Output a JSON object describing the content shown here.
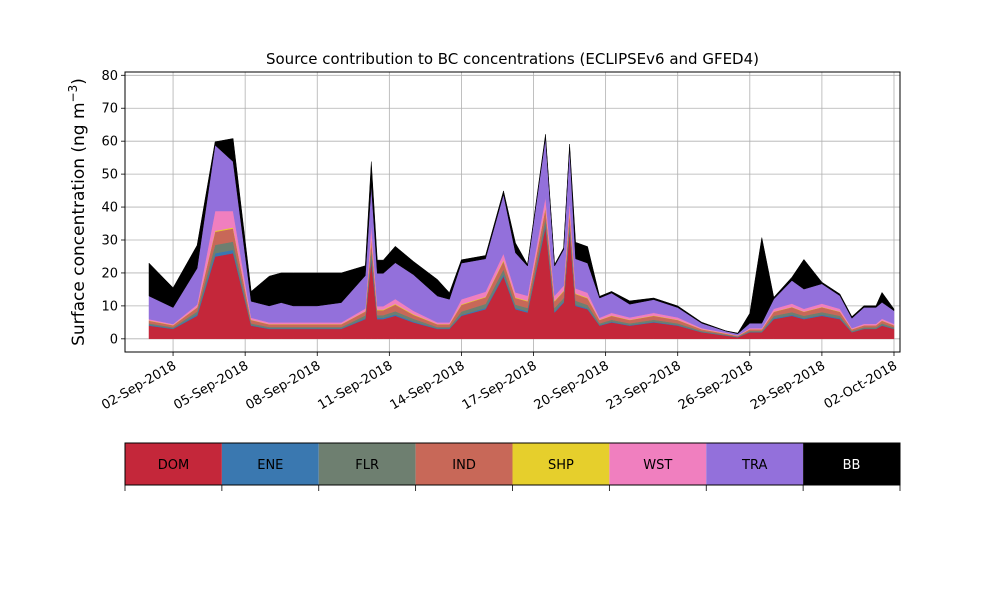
{
  "chart_data": {
    "type": "area",
    "stacked": true,
    "title": "Source contribution to BC concentrations (ECLIPSEv6 and GFED4)",
    "ylabel_main": "Surface concentration (ng m",
    "ylabel_sup": "−3",
    "ylabel_close": ")",
    "xlabel": "",
    "ylim": [
      -4,
      81
    ],
    "xlim": [
      "2018-08-31T00:00",
      "2018-10-02T06:00"
    ],
    "grid": true,
    "yticks": [
      0,
      10,
      20,
      30,
      40,
      50,
      60,
      70,
      80
    ],
    "xticks": [
      {
        "date": "2018-09-02",
        "label": "02-Sep-2018"
      },
      {
        "date": "2018-09-05",
        "label": "05-Sep-2018"
      },
      {
        "date": "2018-09-08",
        "label": "08-Sep-2018"
      },
      {
        "date": "2018-09-11",
        "label": "11-Sep-2018"
      },
      {
        "date": "2018-09-14",
        "label": "14-Sep-2018"
      },
      {
        "date": "2018-09-17",
        "label": "17-Sep-2018"
      },
      {
        "date": "2018-09-20",
        "label": "20-Sep-2018"
      },
      {
        "date": "2018-09-23",
        "label": "23-Sep-2018"
      },
      {
        "date": "2018-09-26",
        "label": "26-Sep-2018"
      },
      {
        "date": "2018-09-29",
        "label": "29-Sep-2018"
      },
      {
        "date": "2018-10-02",
        "label": "02-Oct-2018"
      }
    ],
    "legend_position": "bottom",
    "series_order": [
      "DOM",
      "ENE",
      "FLR",
      "IND",
      "SHP",
      "WST",
      "TRA",
      "BB"
    ],
    "colors": {
      "DOM": "#c4273a",
      "ENE": "#3a78b0",
      "FLR": "#6e7f70",
      "IND": "#c86858",
      "SHP": "#e6cf2c",
      "WST": "#f07fbf",
      "TRA": "#9370db",
      "BB": "#000000"
    },
    "x": [
      "2018-09-01T00:00",
      "2018-09-02T00:00",
      "2018-09-03T00:00",
      "2018-09-03T18:00",
      "2018-09-04T12:00",
      "2018-09-05T06:00",
      "2018-09-06T00:00",
      "2018-09-06T12:00",
      "2018-09-07T00:00",
      "2018-09-08T00:00",
      "2018-09-09T00:00",
      "2018-09-10T00:00",
      "2018-09-10T06:00",
      "2018-09-10T12:00",
      "2018-09-10T18:00",
      "2018-09-11T06:00",
      "2018-09-12T00:00",
      "2018-09-13T00:00",
      "2018-09-13T12:00",
      "2018-09-14T00:00",
      "2018-09-15T00:00",
      "2018-09-15T18:00",
      "2018-09-16T06:00",
      "2018-09-16T18:00",
      "2018-09-17T12:00",
      "2018-09-17T21:00",
      "2018-09-18T06:00",
      "2018-09-18T12:00",
      "2018-09-18T18:00",
      "2018-09-19T06:00",
      "2018-09-19T18:00",
      "2018-09-20T06:00",
      "2018-09-21T00:00",
      "2018-09-22T00:00",
      "2018-09-23T00:00",
      "2018-09-24T00:00",
      "2018-09-25T00:00",
      "2018-09-25T12:00",
      "2018-09-26T00:00",
      "2018-09-26T12:00",
      "2018-09-27T00:00",
      "2018-09-27T18:00",
      "2018-09-28T06:00",
      "2018-09-29T00:00",
      "2018-09-29T18:00",
      "2018-09-30T06:00",
      "2018-09-30T18:00",
      "2018-10-01T06:00",
      "2018-10-01T12:00",
      "2018-10-02T00:00"
    ],
    "series": [
      {
        "name": "DOM",
        "values": [
          4,
          3,
          7,
          25,
          26,
          4,
          3,
          3,
          3,
          3,
          3,
          6,
          24,
          6,
          6,
          7,
          5,
          3,
          3,
          7,
          9,
          19,
          9,
          8,
          34,
          8,
          11,
          33,
          10,
          9,
          4,
          5,
          4,
          5,
          4,
          2,
          1,
          0.5,
          2,
          2,
          6,
          7,
          6,
          7,
          6,
          2,
          3,
          3,
          4,
          3
        ]
      },
      {
        "name": "ENE",
        "values": [
          0.3,
          0.2,
          0.5,
          1,
          1,
          0.2,
          0.2,
          0.2,
          0.2,
          0.2,
          0.2,
          0.3,
          1,
          0.4,
          0.4,
          0.4,
          0.3,
          0.2,
          0.2,
          0.3,
          0.4,
          0.6,
          0.4,
          0.4,
          0.8,
          0.4,
          0.4,
          0.8,
          0.4,
          0.3,
          0.2,
          0.2,
          0.2,
          0.2,
          0.2,
          0.1,
          0.1,
          0.1,
          0.1,
          0.1,
          0.3,
          0.3,
          0.3,
          0.3,
          0.3,
          0.1,
          0.1,
          0.1,
          0.2,
          0.1
        ]
      },
      {
        "name": "FLR",
        "values": [
          0.4,
          0.3,
          0.8,
          2.5,
          2.5,
          0.5,
          0.4,
          0.4,
          0.4,
          0.4,
          0.4,
          0.8,
          2.5,
          0.8,
          0.8,
          1,
          0.8,
          0.4,
          0.4,
          1,
          1.2,
          1.5,
          1,
          1,
          2,
          1,
          1,
          2,
          1.2,
          1,
          0.5,
          0.6,
          0.5,
          0.6,
          0.5,
          0.3,
          0.2,
          0.1,
          0.3,
          0.3,
          0.7,
          0.8,
          0.7,
          0.8,
          0.7,
          0.3,
          0.4,
          0.4,
          0.5,
          0.4
        ]
      },
      {
        "name": "IND",
        "values": [
          0.8,
          0.6,
          1.2,
          4,
          4,
          1,
          0.8,
          0.8,
          0.8,
          0.8,
          0.8,
          1.2,
          3,
          1.5,
          1.5,
          2,
          1.2,
          0.8,
          0.8,
          2,
          2,
          2.5,
          2,
          2,
          3,
          2,
          2,
          3,
          2,
          2,
          1,
          1.2,
          1,
          1.2,
          1,
          0.5,
          0.3,
          0.2,
          0.5,
          0.5,
          1.2,
          1.5,
          1.2,
          1.5,
          1.2,
          0.5,
          0.6,
          0.6,
          0.8,
          0.6
        ]
      },
      {
        "name": "SHP",
        "values": [
          0.1,
          0.1,
          0.1,
          0.3,
          0.3,
          0.1,
          0.1,
          0.1,
          0.1,
          0.1,
          0.1,
          0.1,
          0.3,
          0.2,
          0.2,
          0.2,
          0.2,
          0.1,
          0.1,
          0.2,
          0.2,
          0.3,
          0.2,
          0.2,
          0.3,
          0.2,
          0.2,
          0.3,
          0.2,
          0.2,
          0.1,
          0.1,
          0.1,
          0.1,
          0.1,
          0.05,
          0.05,
          0.05,
          0.05,
          0.05,
          0.1,
          0.1,
          0.1,
          0.1,
          0.1,
          0.05,
          0.05,
          0.05,
          0.1,
          0.05
        ]
      },
      {
        "name": "WST",
        "values": [
          0.4,
          0.3,
          0.8,
          6,
          5,
          0.6,
          0.5,
          0.5,
          0.5,
          0.5,
          0.5,
          0.8,
          4,
          1,
          1,
          1.5,
          1,
          0.5,
          0.5,
          1.5,
          1.5,
          2,
          1.5,
          1.5,
          3,
          1.5,
          1.5,
          3,
          1.5,
          1.5,
          0.6,
          0.8,
          0.7,
          0.8,
          0.7,
          0.3,
          0.2,
          0.1,
          0.3,
          0.3,
          0.8,
          1,
          0.8,
          1,
          0.8,
          0.3,
          0.4,
          0.4,
          0.5,
          0.4
        ]
      },
      {
        "name": "TRA",
        "values": [
          7,
          5,
          11,
          20,
          15,
          5,
          5,
          6,
          5,
          5,
          6,
          10,
          12,
          10,
          10,
          11,
          11,
          8,
          7,
          11,
          10,
          18,
          12,
          9,
          18,
          9,
          11,
          16,
          9,
          9,
          6,
          6,
          4,
          4,
          3,
          1.5,
          0.5,
          0.5,
          1.5,
          1.5,
          3,
          7,
          6,
          6,
          4,
          3,
          5,
          5,
          5,
          4
        ]
      },
      {
        "name": "BB",
        "values": [
          10,
          6,
          7,
          1,
          7,
          3,
          9,
          9,
          10,
          10,
          9,
          3,
          7,
          4,
          4,
          5,
          4,
          5,
          2,
          1,
          1,
          1,
          3,
          0.5,
          1,
          0.5,
          0.5,
          1,
          5,
          5,
          0.5,
          0.5,
          1,
          0.5,
          0.5,
          0.3,
          0.1,
          0.2,
          3,
          26,
          0.5,
          1,
          9,
          0.5,
          0.5,
          0.5,
          0.5,
          0.5,
          3,
          0.5
        ]
      }
    ],
    "legend": {
      "labels": [
        "DOM",
        "ENE",
        "FLR",
        "IND",
        "SHP",
        "WST",
        "TRA",
        "BB"
      ],
      "text_colors": [
        "#000000",
        "#000000",
        "#000000",
        "#000000",
        "#000000",
        "#000000",
        "#000000",
        "#ffffff"
      ]
    }
  }
}
